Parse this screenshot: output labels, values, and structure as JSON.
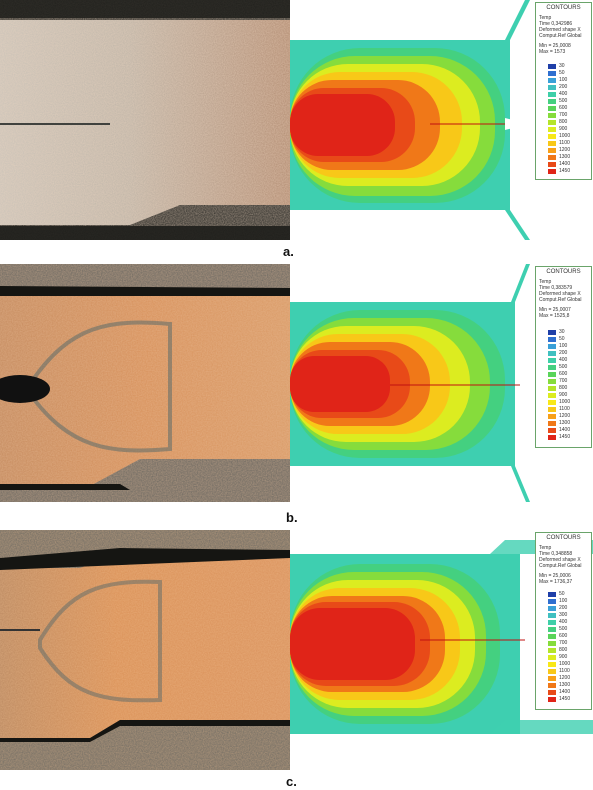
{
  "panels": [
    {
      "id": "a",
      "caption": "a.",
      "legend": {
        "title": "CONTOURS",
        "lines": [
          "Temp",
          "Time 0,342986",
          "Deformed shape X",
          "Comput.Ref Global"
        ],
        "min": "Min = 25,0008",
        "max": "Max = 1573",
        "levels": [
          "30",
          "50",
          "100",
          "200",
          "400",
          "500",
          "600",
          "700",
          "800",
          "900",
          "1000",
          "1100",
          "1200",
          "1300",
          "1400",
          "1450"
        ]
      }
    },
    {
      "id": "b",
      "caption": "b.",
      "legend": {
        "title": "CONTOURS",
        "lines": [
          "Temp",
          "Time 0,383579",
          "Deformed shape X",
          "Comput.Ref Global"
        ],
        "min": "Min = 25,0007",
        "max": "Max = 1525,8",
        "levels": [
          "30",
          "50",
          "100",
          "200",
          "400",
          "500",
          "600",
          "700",
          "800",
          "900",
          "1000",
          "1100",
          "1200",
          "1300",
          "1400",
          "1450"
        ]
      }
    },
    {
      "id": "c",
      "caption": "c.",
      "legend": {
        "title": "CONTOURS",
        "lines": [
          "Temp",
          "Time 0,348858",
          "Deformed shape X",
          "Comput.Ref Global"
        ],
        "min": "Min = 25,0006",
        "max": "Max = 1736,37",
        "levels": [
          "50",
          "100",
          "200",
          "300",
          "400",
          "500",
          "600",
          "700",
          "800",
          "900",
          "1000",
          "1100",
          "1200",
          "1300",
          "1400",
          "1450"
        ]
      }
    }
  ],
  "colors": {
    "scale": [
      "#1f3fa8",
      "#2f6fd0",
      "#3aa0d8",
      "#40c0c0",
      "#3ecfa8",
      "#44d080",
      "#5ad45a",
      "#86dc3c",
      "#b4e42a",
      "#dcec20",
      "#f8e818",
      "#f8c818",
      "#f8a018",
      "#f07818",
      "#e84a18",
      "#e02418"
    ],
    "mesh_outer": "#3ecfb0",
    "hot_core": "#f03a28"
  },
  "icons": {
    "micrograph": "optical-micrograph",
    "simulation": "temperature-field"
  }
}
